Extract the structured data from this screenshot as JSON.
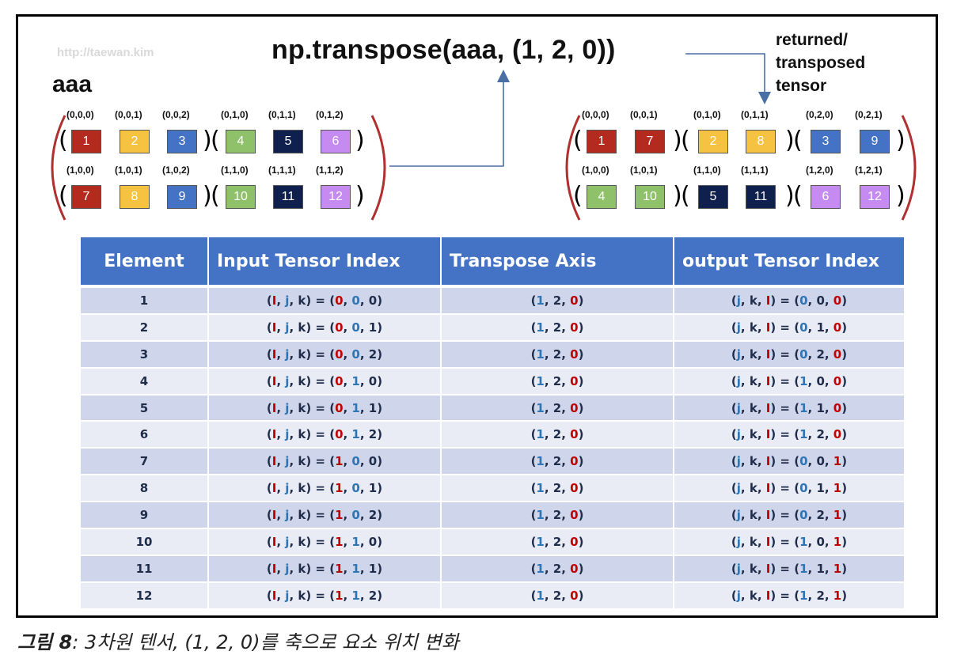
{
  "watermark": "http://taewan.kim",
  "input_label": "aaa",
  "title": "np.transpose(aaa, (1, 2, 0))",
  "returned_label": [
    "returned/",
    "transposed",
    "tensor"
  ],
  "colors": {
    "1": "#b52a1f",
    "2": "#f5c242",
    "3": "#4472c4",
    "4": "#8fc16a",
    "5": "#0f1f4e",
    "6": "#c58bf0",
    "7": "#b52a1f",
    "8": "#f5c242",
    "9": "#4472c4",
    "10": "#8fc16a",
    "11": "#0f1f4e",
    "12": "#c58bf0",
    "header": "#4472c4",
    "red_text": "#c00000",
    "blue_text": "#2e75b6",
    "arc": "#b03030"
  },
  "input_tensor": {
    "rows": [
      [
        {
          "index": "(0,0,0)",
          "value": "1"
        },
        {
          "index": "(0,0,1)",
          "value": "2"
        },
        {
          "index": "(0,0,2)",
          "value": "3"
        },
        {
          "index": "(0,1,0)",
          "value": "4"
        },
        {
          "index": "(0,1,1)",
          "value": "5"
        },
        {
          "index": "(0,1,2)",
          "value": "6"
        }
      ],
      [
        {
          "index": "(1,0,0)",
          "value": "7"
        },
        {
          "index": "(1,0,1)",
          "value": "8"
        },
        {
          "index": "(1,0,2)",
          "value": "9"
        },
        {
          "index": "(1,1,0)",
          "value": "10"
        },
        {
          "index": "(1,1,1)",
          "value": "11"
        },
        {
          "index": "(1,1,2)",
          "value": "12"
        }
      ]
    ]
  },
  "output_tensor": {
    "rows": [
      [
        {
          "index": "(0,0,0)",
          "value": "1"
        },
        {
          "index": "(0,0,1)",
          "value": "7"
        },
        {
          "index": "(0,1,0)",
          "value": "2"
        },
        {
          "index": "(0,1,1)",
          "value": "8"
        },
        {
          "index": "(0,2,0)",
          "value": "3"
        },
        {
          "index": "(0,2,1)",
          "value": "9"
        }
      ],
      [
        {
          "index": "(1,0,0)",
          "value": "4"
        },
        {
          "index": "(1,0,1)",
          "value": "10"
        },
        {
          "index": "(1,1,0)",
          "value": "5"
        },
        {
          "index": "(1,1,1)",
          "value": "11"
        },
        {
          "index": "(1,2,0)",
          "value": "6"
        },
        {
          "index": "(1,2,1)",
          "value": "12"
        }
      ]
    ]
  },
  "table": {
    "headers": [
      "Element",
      "Input Tensor Index",
      "Transpose Axis",
      "output Tensor Index"
    ],
    "rows": [
      {
        "element": "1",
        "input": "(0, 0, 0)",
        "axis": "(1, 2, 0)",
        "output": "(0, 0, 0)"
      },
      {
        "element": "2",
        "input": "(0, 0, 1)",
        "axis": "(1, 2, 0)",
        "output": "(0, 1, 0)"
      },
      {
        "element": "3",
        "input": "(0, 0, 2)",
        "axis": "(1, 2, 0)",
        "output": "(0, 2, 0)"
      },
      {
        "element": "4",
        "input": "(0, 1, 0)",
        "axis": "(1, 2, 0)",
        "output": "(1, 0, 0)"
      },
      {
        "element": "5",
        "input": "(0, 1, 1)",
        "axis": "(1, 2, 0)",
        "output": "(1, 1, 0)"
      },
      {
        "element": "6",
        "input": "(0, 1, 2)",
        "axis": "(1, 2, 0)",
        "output": "(1, 2, 0)"
      },
      {
        "element": "7",
        "input": "(1, 0, 0)",
        "axis": "(1, 2, 0)",
        "output": "(0, 0, 1)"
      },
      {
        "element": "8",
        "input": "(1, 0, 1)",
        "axis": "(1, 2, 0)",
        "output": "(0, 1, 1)"
      },
      {
        "element": "9",
        "input": "(1, 0, 2)",
        "axis": "(1, 2, 0)",
        "output": "(0, 2, 1)"
      },
      {
        "element": "10",
        "input": "(1, 1, 0)",
        "axis": "(1, 2, 0)",
        "output": "(1, 0, 1)"
      },
      {
        "element": "11",
        "input": "(1, 1, 1)",
        "axis": "(1, 2, 0)",
        "output": "(1, 1, 1)"
      },
      {
        "element": "12",
        "input": "(1, 1, 2)",
        "axis": "(1, 2, 0)",
        "output": "(1, 2, 1)"
      }
    ]
  },
  "caption": {
    "label": "그림 8",
    "text": ": 3차원 텐서, (1, 2, 0)를 축으로 요소 위치 변화"
  }
}
